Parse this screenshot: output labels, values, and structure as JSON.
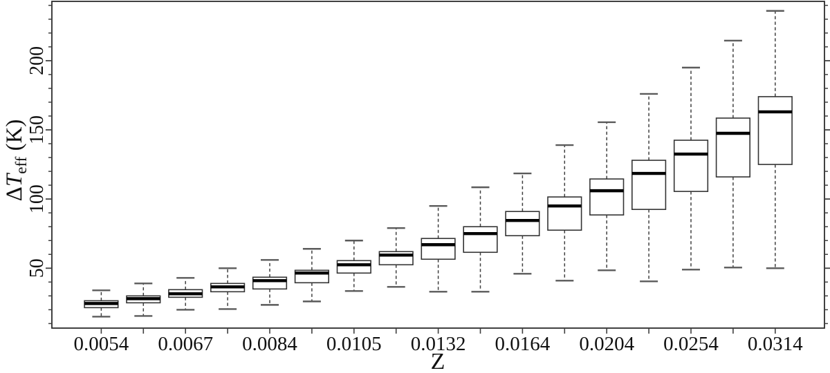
{
  "figure": {
    "background": "#ffffff",
    "line_color": "#2b2b2b",
    "median_color": "#000000",
    "whisker_color": "#3f3f3f",
    "cap_color": "#5a5a5a",
    "text_color": "#111111"
  },
  "chart_data": {
    "type": "boxplot",
    "title": "",
    "xlabel": "Z",
    "ylabel_delta": "Δ",
    "ylabel_symbol": "T",
    "ylabel_sub": "eff",
    "ylabel_units": " (K)",
    "ylabel_plain": "ΔT_eff (K)",
    "yticks": [
      50,
      100,
      150,
      200
    ],
    "ytick_labels": [
      "50",
      "100",
      "150",
      "200"
    ],
    "minor_ticks": {
      "start": 10,
      "end": 240,
      "step": 10
    },
    "ylim_drawn": [
      6.7,
      243.3
    ],
    "x_tick_labels_shown": [
      "0.0054",
      "0.0067",
      "0.0084",
      "0.0105",
      "0.0132",
      "0.0164",
      "0.0204",
      "0.0254",
      "0.0314"
    ],
    "boxes": [
      {
        "tick_label": "0.0054",
        "whisker_low": 15,
        "q1": 21.5,
        "median": 24.5,
        "q3": 26.5,
        "whisker_high": 34
      },
      {
        "tick_label": "",
        "whisker_low": 15.5,
        "q1": 25,
        "median": 28,
        "q3": 30,
        "whisker_high": 39
      },
      {
        "tick_label": "0.0067",
        "whisker_low": 20,
        "q1": 29,
        "median": 31.5,
        "q3": 34.5,
        "whisker_high": 43
      },
      {
        "tick_label": "",
        "whisker_low": 20.5,
        "q1": 33,
        "median": 36.5,
        "q3": 39,
        "whisker_high": 50
      },
      {
        "tick_label": "0.0084",
        "whisker_low": 23.5,
        "q1": 35,
        "median": 41,
        "q3": 43.5,
        "whisker_high": 56
      },
      {
        "tick_label": "",
        "whisker_low": 26,
        "q1": 39.5,
        "median": 46.5,
        "q3": 48.5,
        "whisker_high": 64
      },
      {
        "tick_label": "0.0105",
        "whisker_low": 33.5,
        "q1": 46.5,
        "median": 52.5,
        "q3": 55.5,
        "whisker_high": 70
      },
      {
        "tick_label": "",
        "whisker_low": 36.5,
        "q1": 52.5,
        "median": 59.5,
        "q3": 62,
        "whisker_high": 79
      },
      {
        "tick_label": "0.0132",
        "whisker_low": 33,
        "q1": 56.5,
        "median": 67,
        "q3": 71.5,
        "whisker_high": 95
      },
      {
        "tick_label": "",
        "whisker_low": 33,
        "q1": 61.5,
        "median": 75,
        "q3": 80,
        "whisker_high": 108.5
      },
      {
        "tick_label": "0.0164",
        "whisker_low": 46,
        "q1": 73.5,
        "median": 84.5,
        "q3": 91,
        "whisker_high": 118.5
      },
      {
        "tick_label": "",
        "whisker_low": 41,
        "q1": 77.5,
        "median": 95,
        "q3": 101.5,
        "whisker_high": 139
      },
      {
        "tick_label": "0.0204",
        "whisker_low": 48.5,
        "q1": 88.5,
        "median": 106,
        "q3": 114.5,
        "whisker_high": 155.5
      },
      {
        "tick_label": "",
        "whisker_low": 40.5,
        "q1": 92.5,
        "median": 118.5,
        "q3": 128,
        "whisker_high": 176
      },
      {
        "tick_label": "0.0254",
        "whisker_low": 49,
        "q1": 105.5,
        "median": 132.5,
        "q3": 142.5,
        "whisker_high": 195
      },
      {
        "tick_label": "",
        "whisker_low": 50.5,
        "q1": 116,
        "median": 147.5,
        "q3": 158.5,
        "whisker_high": 214.5
      },
      {
        "tick_label": "0.0314",
        "whisker_low": 50,
        "q1": 125,
        "median": 163,
        "q3": 174,
        "whisker_high": 236
      }
    ]
  }
}
